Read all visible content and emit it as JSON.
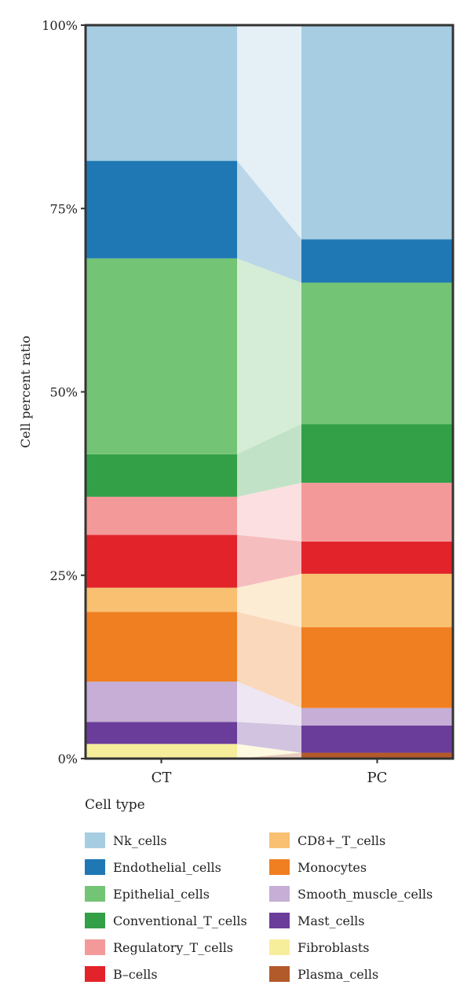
{
  "chart_data": {
    "type": "stacked-bar",
    "ylabel": "Cell percent ratio",
    "xlabel": "",
    "ylim": [
      0,
      100
    ],
    "y_ticks": [
      "0%",
      "25%",
      "50%",
      "75%",
      "100%"
    ],
    "categories": [
      "CT",
      "PC"
    ],
    "legend_title": "Cell type",
    "legend_position": "bottom",
    "series": [
      {
        "name": "Plasma_cells",
        "color": "#b35a2a",
        "values": [
          0.0,
          0.8
        ]
      },
      {
        "name": "Fibroblasts",
        "color": "#f7ee9c",
        "values": [
          2.0,
          0.0
        ]
      },
      {
        "name": "Mast_cells",
        "color": "#6a3d9a",
        "values": [
          3.0,
          3.7
        ]
      },
      {
        "name": "Smooth_muscle_cells",
        "color": "#c6aed6",
        "values": [
          5.5,
          2.4
        ]
      },
      {
        "name": "Monocytes",
        "color": "#f07f22",
        "values": [
          9.5,
          11.0
        ]
      },
      {
        "name": "CD8+_T_cells",
        "color": "#f8c070",
        "values": [
          3.3,
          7.3
        ]
      },
      {
        "name": "B-cells",
        "color": "#e2232a",
        "values": [
          7.2,
          4.4
        ]
      },
      {
        "name": "Regulatory_T_cells",
        "color": "#f4999a",
        "values": [
          5.2,
          8.0
        ]
      },
      {
        "name": "Conventional_T_cells",
        "color": "#33a047",
        "values": [
          5.8,
          8.0
        ]
      },
      {
        "name": "Epithelial_cells",
        "color": "#74c476",
        "values": [
          26.7,
          19.3
        ]
      },
      {
        "name": "Endothelial_cells",
        "color": "#1f78b4",
        "values": [
          13.3,
          5.9
        ]
      },
      {
        "name": "Nk_cells",
        "color": "#a6cde2",
        "values": [
          18.5,
          29.2
        ]
      }
    ],
    "legend_order": [
      "Nk_cells",
      "Endothelial_cells",
      "Epithelial_cells",
      "Conventional_T_cells",
      "Regulatory_T_cells",
      "B–cells",
      "CD8+_T_cells",
      "Monocytes",
      "Smooth_muscle_cells",
      "Mast_cells",
      "Fibroblasts",
      "Plasma_cells"
    ]
  }
}
